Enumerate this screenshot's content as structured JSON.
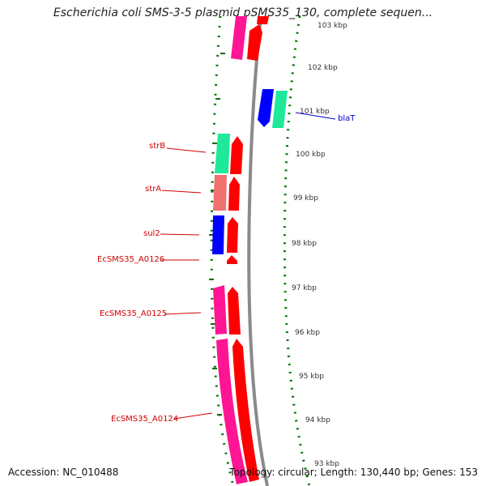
{
  "title": "Escherichia coli SMS-3-5 plasmid pSMS35_130, complete sequen...",
  "footer": {
    "accession": "Accession: NC_010488",
    "topology": "Topology: circular; Length: 130,440 bp; Genes: 153"
  },
  "colors": {
    "forward": "#ff0000",
    "reverse_pink": "#ff1493",
    "reverse_green": "#1ee89a",
    "reverse_blue": "#0000ff",
    "reverse_salmon": "#f07070",
    "backbone": "#8a8a8a",
    "ticks": "#007000",
    "label_red": "#d00000",
    "label_blue": "#0000cc"
  },
  "ticks": [
    "103 kbp",
    "102 kbp",
    "101 kbp",
    "100 kbp",
    "99 kbp",
    "98 kbp",
    "97 kbp",
    "96 kbp",
    "95 kbp",
    "94 kbp",
    "93 kbp"
  ],
  "gene_labels": {
    "blaT": "blaT",
    "strB": "strB",
    "strA": "strA",
    "sul2": "sul2",
    "a0126": "EcSMS35_A0126",
    "a0125": "EcSMS35_A0125",
    "a0124": "EcSMS35_A0124"
  }
}
